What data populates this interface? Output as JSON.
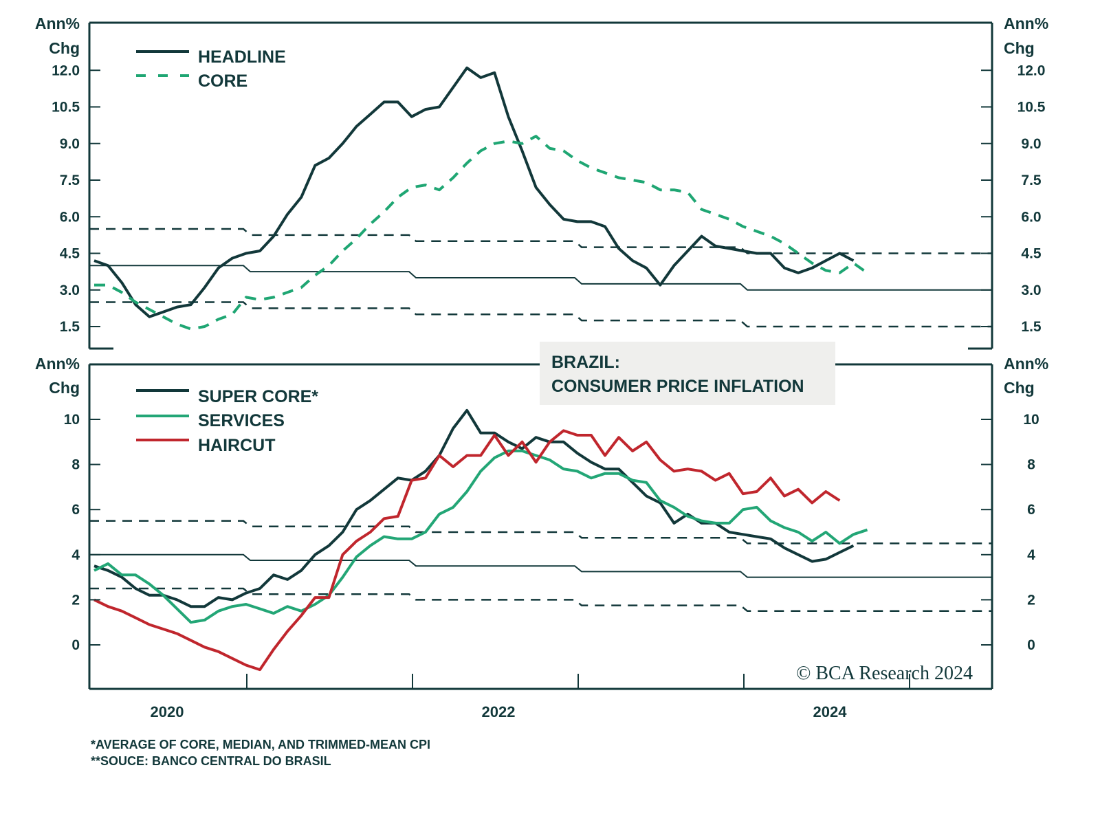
{
  "chart_data": [
    {
      "type": "line",
      "title": "BRAZIL: CONSUMER PRICE INFLATION",
      "panel": "top",
      "ylabel": "Ann% Chg",
      "ylim": [
        0.5,
        13.5
      ],
      "yticks": [
        "12.0",
        "10.5",
        "9.0",
        "7.5",
        "6.0",
        "4.5",
        "3.0",
        "1.5"
      ],
      "ytick_values": [
        12.0,
        10.5,
        9.0,
        7.5,
        6.0,
        4.5,
        3.0,
        1.5
      ],
      "x_start": "2020-01",
      "x_frequency": "monthly",
      "legend": [
        "HEADLINE",
        "CORE"
      ],
      "legend_position": "top-left",
      "series": [
        {
          "name": "HEADLINE",
          "style": "solid",
          "color": "#12383a",
          "values": [
            4.2,
            4.0,
            3.3,
            2.4,
            1.9,
            2.1,
            2.3,
            2.4,
            3.1,
            3.9,
            4.3,
            4.5,
            4.6,
            5.2,
            6.1,
            6.8,
            8.1,
            8.4,
            9.0,
            9.7,
            10.2,
            10.7,
            10.7,
            10.1,
            10.4,
            10.5,
            11.3,
            12.1,
            11.7,
            11.9,
            10.1,
            8.7,
            7.2,
            6.5,
            5.9,
            5.8,
            5.8,
            5.6,
            4.7,
            4.2,
            3.9,
            3.2,
            4.0,
            4.6,
            5.2,
            4.8,
            4.7,
            4.6,
            4.5,
            4.5,
            3.9,
            3.7,
            3.9,
            4.2,
            4.5,
            4.2
          ]
        },
        {
          "name": "CORE",
          "style": "dashed",
          "color": "#1fa673",
          "values": [
            3.2,
            3.2,
            2.9,
            2.5,
            2.2,
            1.9,
            1.6,
            1.4,
            1.5,
            1.8,
            2.0,
            2.7,
            2.6,
            2.7,
            2.9,
            3.1,
            3.6,
            4.0,
            4.6,
            5.1,
            5.7,
            6.2,
            6.8,
            7.2,
            7.3,
            7.1,
            7.6,
            8.2,
            8.7,
            9.0,
            9.1,
            9.0,
            9.3,
            8.8,
            8.7,
            8.3,
            8.0,
            7.8,
            7.6,
            7.5,
            7.4,
            7.1,
            7.1,
            7.0,
            6.3,
            6.1,
            5.9,
            5.6,
            5.4,
            5.2,
            4.9,
            4.5,
            4.1,
            3.8,
            3.7,
            4.1,
            3.7
          ]
        }
      ],
      "target_bands": {
        "years": [
          "2020",
          "2021",
          "2022",
          "2023",
          "2024"
        ],
        "target": [
          4.0,
          3.75,
          3.5,
          3.25,
          3.0
        ],
        "upper": [
          5.5,
          5.25,
          5.0,
          4.75,
          4.5
        ],
        "lower": [
          2.5,
          2.25,
          2.0,
          1.75,
          1.5
        ]
      }
    },
    {
      "type": "line",
      "panel": "bottom",
      "ylabel": "Ann% Chg",
      "ylim": [
        -2,
        12.5
      ],
      "yticks": [
        "10",
        "8",
        "6",
        "4",
        "2",
        "0"
      ],
      "ytick_values": [
        10,
        8,
        6,
        4,
        2,
        0
      ],
      "x_start": "2020-01",
      "x_frequency": "monthly",
      "xticks": [
        "2020",
        "2022",
        "2024"
      ],
      "legend": [
        "SUPER CORE*",
        "SERVICES",
        "HAIRCUT"
      ],
      "legend_position": "top-left",
      "series": [
        {
          "name": "SUPER CORE*",
          "style": "solid",
          "color": "#12383a",
          "values": [
            3.5,
            3.3,
            3.0,
            2.5,
            2.2,
            2.2,
            2.0,
            1.7,
            1.7,
            2.1,
            2.0,
            2.3,
            2.5,
            3.1,
            2.9,
            3.3,
            4.0,
            4.4,
            5.0,
            6.0,
            6.4,
            6.9,
            7.4,
            7.3,
            7.7,
            8.4,
            9.6,
            10.4,
            9.4,
            9.4,
            9.0,
            8.7,
            9.2,
            9.0,
            9.0,
            8.5,
            8.1,
            7.8,
            7.8,
            7.2,
            6.6,
            6.3,
            5.4,
            5.8,
            5.4,
            5.4,
            5.0,
            4.9,
            4.8,
            4.7,
            4.3,
            4.0,
            3.7,
            3.8,
            4.1,
            4.4
          ]
        },
        {
          "name": "SERVICES",
          "style": "solid",
          "color": "#23a676",
          "values": [
            3.3,
            3.6,
            3.1,
            3.1,
            2.7,
            2.2,
            1.6,
            1.0,
            1.1,
            1.5,
            1.7,
            1.8,
            1.6,
            1.4,
            1.7,
            1.5,
            1.8,
            2.2,
            3.0,
            3.9,
            4.4,
            4.8,
            4.7,
            4.7,
            5.0,
            5.8,
            6.1,
            6.8,
            7.7,
            8.3,
            8.6,
            8.6,
            8.4,
            8.2,
            7.8,
            7.7,
            7.4,
            7.6,
            7.6,
            7.3,
            7.2,
            6.4,
            6.1,
            5.7,
            5.5,
            5.4,
            5.4,
            6.0,
            6.1,
            5.5,
            5.2,
            5.0,
            4.6,
            5.0,
            4.5,
            4.9,
            5.1
          ]
        },
        {
          "name": "HAIRCUT",
          "style": "solid",
          "color": "#c0262d",
          "values": [
            2.0,
            1.7,
            1.5,
            1.2,
            0.9,
            0.7,
            0.5,
            0.2,
            -0.1,
            -0.3,
            -0.6,
            -0.9,
            -1.1,
            -0.2,
            0.6,
            1.3,
            2.1,
            2.1,
            4.0,
            4.6,
            5.0,
            5.6,
            5.7,
            7.3,
            7.4,
            8.4,
            7.9,
            8.4,
            8.4,
            9.3,
            8.4,
            9.0,
            8.1,
            9.0,
            9.5,
            9.3,
            9.3,
            8.4,
            9.2,
            8.6,
            9.0,
            8.2,
            7.7,
            7.8,
            7.7,
            7.3,
            7.6,
            6.7,
            6.8,
            7.4,
            6.6,
            6.9,
            6.3,
            6.8,
            6.4
          ]
        }
      ],
      "target_bands": {
        "years": [
          "2020",
          "2021",
          "2022",
          "2023",
          "2024"
        ],
        "target": [
          4.0,
          3.75,
          3.5,
          3.25,
          3.0
        ],
        "upper": [
          5.5,
          5.25,
          5.0,
          4.75,
          4.5
        ],
        "lower": [
          2.5,
          2.25,
          2.0,
          1.75,
          1.5
        ]
      }
    }
  ],
  "title_box": {
    "line1": "BRAZIL:",
    "line2": "CONSUMER PRICE INFLATION"
  },
  "axis_unit": {
    "line1": "Ann%",
    "line2": "Chg"
  },
  "x_labels": [
    "2020",
    "2022",
    "2024"
  ],
  "footnotes": [
    "*AVERAGE OF CORE, MEDIAN, AND TRIMMED-MEAN CPI",
    "**SOUCE: BANCO CENTRAL DO BRASIL"
  ],
  "copyright": "© BCA Research 2024",
  "colors": {
    "dark": "#12383a",
    "green": "#23a676",
    "red": "#c0262d",
    "title_bg": "#efefed"
  }
}
